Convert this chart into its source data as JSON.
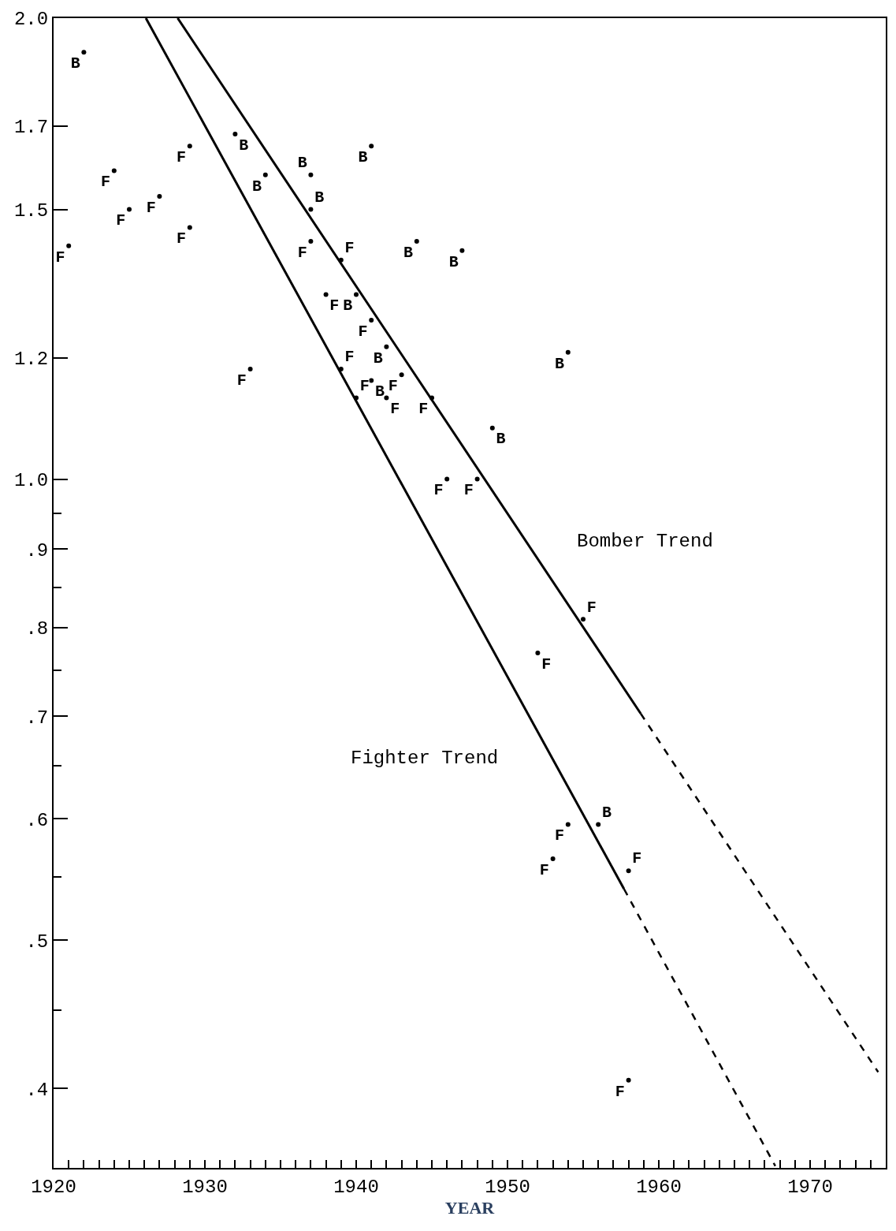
{
  "chart_data": {
    "type": "scatter",
    "xlabel": "YEAR",
    "log": "y",
    "xlim": [
      1920,
      1975
    ],
    "xticks": [
      1920,
      {
        "value": 1921,
        "label": null
      },
      {
        "value": 1922,
        "label": null
      },
      {
        "value": 1923,
        "label": null
      },
      {
        "value": 1924,
        "label": null
      },
      {
        "value": 1925,
        "label": null
      },
      {
        "value": 1926,
        "label": null
      },
      {
        "value": 1927,
        "label": null
      },
      {
        "value": 1928,
        "label": null
      },
      {
        "value": 1929,
        "label": null
      },
      1930,
      {
        "value": 1931,
        "label": null
      },
      {
        "value": 1932,
        "label": null
      },
      {
        "value": 1933,
        "label": null
      },
      {
        "value": 1934,
        "label": null
      },
      {
        "value": 1935,
        "label": null
      },
      {
        "value": 1936,
        "label": null
      },
      {
        "value": 1937,
        "label": null
      },
      {
        "value": 1938,
        "label": null
      },
      {
        "value": 1939,
        "label": null
      },
      1940,
      {
        "value": 1941,
        "label": null
      },
      {
        "value": 1942,
        "label": null
      },
      {
        "value": 1943,
        "label": null
      },
      {
        "value": 1944,
        "label": null
      },
      {
        "value": 1945,
        "label": null
      },
      {
        "value": 1946,
        "label": null
      },
      {
        "value": 1947,
        "label": null
      },
      {
        "value": 1948,
        "label": null
      },
      {
        "value": 1949,
        "label": null
      },
      1950,
      {
        "value": 1951,
        "label": null
      },
      {
        "value": 1952,
        "label": null
      },
      {
        "value": 1953,
        "label": null
      },
      {
        "value": 1954,
        "label": null
      },
      {
        "value": 1955,
        "label": null
      },
      {
        "value": 1956,
        "label": null
      },
      {
        "value": 1957,
        "label": null
      },
      {
        "value": 1958,
        "label": null
      },
      {
        "value": 1959,
        "label": null
      },
      1960,
      {
        "value": 1961,
        "label": null
      },
      {
        "value": 1962,
        "label": null
      },
      {
        "value": 1963,
        "label": null
      },
      {
        "value": 1964,
        "label": null
      },
      {
        "value": 1965,
        "label": null
      },
      {
        "value": 1966,
        "label": null
      },
      {
        "value": 1967,
        "label": null
      },
      {
        "value": 1968,
        "label": null
      },
      {
        "value": 1969,
        "label": null
      },
      1970,
      {
        "value": 1971,
        "label": null
      },
      {
        "value": 1972,
        "label": null
      },
      {
        "value": 1973,
        "label": null
      },
      {
        "value": 1974,
        "label": null
      }
    ],
    "ylim": [
      0.355,
      2.0
    ],
    "yticks": [
      {
        "value": 2.0,
        "label": "2.0"
      },
      1.7,
      1.5,
      1.2,
      {
        "value": 1.0,
        "label": "1.0"
      },
      {
        "value": 0.95,
        "label": null
      },
      {
        "value": 0.9,
        "label": ".9"
      },
      {
        "value": 0.85,
        "label": null
      },
      {
        "value": 0.8,
        "label": ".8"
      },
      {
        "value": 0.75,
        "label": null
      },
      {
        "value": 0.7,
        "label": ".7"
      },
      {
        "value": 0.65,
        "label": null
      },
      {
        "value": 0.6,
        "label": ".6"
      },
      {
        "value": 0.55,
        "label": null
      },
      {
        "value": 0.5,
        "label": ".5"
      },
      {
        "value": 0.45,
        "label": null
      },
      {
        "value": 0.4,
        "label": ".4"
      }
    ],
    "series": [
      {
        "name": "B",
        "marker": "circle",
        "color": "#000000",
        "x": [
          1922,
          1932,
          1934,
          1937,
          1941,
          1937,
          1944,
          1947,
          1940,
          1942,
          1941,
          1954,
          1949,
          1956
        ],
        "values": [
          1.9,
          1.68,
          1.58,
          1.58,
          1.65,
          1.5,
          1.43,
          1.41,
          1.32,
          1.22,
          1.16,
          1.21,
          1.08,
          0.595
        ]
      },
      {
        "name": "F",
        "marker": "circle",
        "color": "#000000",
        "x": [
          1921,
          1924,
          1925,
          1927,
          1929,
          1929,
          1937,
          1939,
          1938,
          1941,
          1933,
          1939,
          1943,
          1940,
          1942,
          1945,
          1946,
          1948,
          1955,
          1952,
          1954,
          1953,
          1958,
          1958
        ],
        "values": [
          1.42,
          1.59,
          1.5,
          1.53,
          1.65,
          1.46,
          1.43,
          1.39,
          1.32,
          1.27,
          1.18,
          1.18,
          1.17,
          1.13,
          1.13,
          1.13,
          1.0,
          1.0,
          0.81,
          0.77,
          0.595,
          0.565,
          0.555,
          0.405
        ]
      },
      {
        "type": "line",
        "line_style": "solid",
        "color": "#000000",
        "x": [
          1926.1,
          1957.7
        ],
        "values": [
          2.0,
          0.54
        ]
      },
      {
        "type": "line",
        "line_style": "dashed",
        "color": "#000000",
        "x": [
          1957.7,
          1967.7
        ],
        "values": [
          0.54,
          0.356
        ]
      },
      {
        "type": "line",
        "line_style": "solid",
        "color": "#000000",
        "x": [
          1928.2,
          1958.8
        ],
        "values": [
          2.0,
          0.703
        ]
      },
      {
        "type": "line",
        "line_style": "dashed",
        "color": "#000000",
        "x": [
          1958.8,
          1974.5
        ],
        "values": [
          0.703,
          0.41
        ]
      }
    ],
    "annotations": [
      "Bomber Trend",
      "Fighter Trend"
    ]
  }
}
